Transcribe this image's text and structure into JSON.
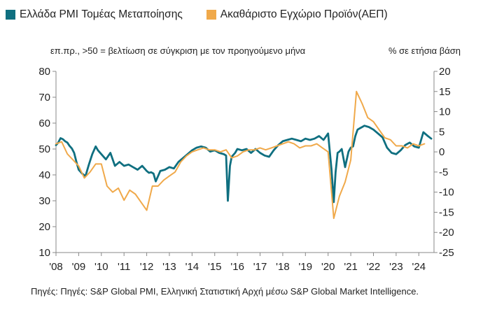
{
  "legend": {
    "pmi_label": "Ελλάδα PMI Τομέας Μεταποίησης",
    "gdp_label": "Ακαθάριστο Εγχώριο Προϊόν(ΑΕΠ)"
  },
  "notes": {
    "left": "επ.πρ., >50 = βελτίωση σε σύγκριση με τον προηγούμενο μήνα",
    "right": "% σε ετήσια βάση"
  },
  "source": "Πηγές: Πηγές: S&P Global PMI, Ελληνική Στατιστική Αρχή μέσω S&P Global Market Intelligence.",
  "colors": {
    "pmi": "#0f6f80",
    "gdp": "#f0a94a",
    "axis": "#888888"
  },
  "chart_data": {
    "type": "line",
    "title": "",
    "xlabel": "",
    "x_tick_labels": [
      "'08",
      "'09",
      "'10",
      "'11",
      "'12",
      "'13",
      "'14",
      "'15",
      "'16",
      "'17",
      "'18",
      "'19",
      "'20",
      "'21",
      "'22",
      "'23",
      "'24"
    ],
    "x_range": [
      2008.0,
      2024.67
    ],
    "y_left": {
      "label": "επ.πρ.",
      "ylim": [
        10,
        80
      ],
      "ticks": [
        10,
        20,
        30,
        40,
        50,
        60,
        70,
        80
      ]
    },
    "y_right": {
      "label": "% σε ετήσια βάση",
      "ylim": [
        -25,
        20
      ],
      "ticks": [
        -25,
        -20,
        -15,
        -10,
        -5,
        0,
        5,
        10,
        15,
        20
      ]
    },
    "series": [
      {
        "name": "Ελλάδα PMI Τομέας Μεταποίησης",
        "axis": "left",
        "x": [
          2008.0,
          2008.1,
          2008.2,
          2008.3,
          2008.4,
          2008.5,
          2008.6,
          2008.7,
          2008.8,
          2008.9,
          2009.0,
          2009.15,
          2009.3,
          2009.45,
          2009.6,
          2009.75,
          2009.85,
          2010.0,
          2010.2,
          2010.4,
          2010.6,
          2010.8,
          2011.0,
          2011.2,
          2011.4,
          2011.6,
          2011.8,
          2012.0,
          2012.1,
          2012.2,
          2012.3,
          2012.4,
          2012.6,
          2012.8,
          2013.0,
          2013.2,
          2013.4,
          2013.6,
          2013.8,
          2014.0,
          2014.2,
          2014.4,
          2014.6,
          2014.8,
          2015.0,
          2015.2,
          2015.4,
          2015.5,
          2015.58,
          2015.67,
          2015.75,
          2015.9,
          2016.0,
          2016.2,
          2016.4,
          2016.6,
          2016.8,
          2017.0,
          2017.2,
          2017.4,
          2017.6,
          2017.8,
          2018.0,
          2018.2,
          2018.4,
          2018.6,
          2018.8,
          2019.0,
          2019.2,
          2019.4,
          2019.6,
          2019.8,
          2020.0,
          2020.15,
          2020.25,
          2020.33,
          2020.42,
          2020.5,
          2020.6,
          2020.75,
          2020.9,
          2021.0,
          2021.1,
          2021.2,
          2021.3,
          2021.4,
          2021.5,
          2021.6,
          2021.8,
          2022.0,
          2022.2,
          2022.4,
          2022.6,
          2022.8,
          2023.0,
          2023.2,
          2023.4,
          2023.6,
          2023.8,
          2024.0,
          2024.2,
          2024.4,
          2024.55
        ],
        "values": [
          51.5,
          52.5,
          54.2,
          53.8,
          53.0,
          52.5,
          51.2,
          50.2,
          48.5,
          45.0,
          42.0,
          40.5,
          39.5,
          44.0,
          48.0,
          51.0,
          49.5,
          48.0,
          46.0,
          48.5,
          43.5,
          45.0,
          43.5,
          44.0,
          43.0,
          42.0,
          43.5,
          41.5,
          40.8,
          41.0,
          40.5,
          37.5,
          41.5,
          42.0,
          43.0,
          42.5,
          45.0,
          46.5,
          48.0,
          49.5,
          50.5,
          51.0,
          50.5,
          49.0,
          49.5,
          48.5,
          48.0,
          47.5,
          30.0,
          43.5,
          47.0,
          48.5,
          50.0,
          49.5,
          50.0,
          48.5,
          50.0,
          48.5,
          47.5,
          47.0,
          49.5,
          51.5,
          53.0,
          53.5,
          54.0,
          53.5,
          53.0,
          54.0,
          53.5,
          54.0,
          55.0,
          53.5,
          56.0,
          42.0,
          29.5,
          41.0,
          48.5,
          49.0,
          50.0,
          43.0,
          49.0,
          50.5,
          51.0,
          55.0,
          57.5,
          58.0,
          58.5,
          59.0,
          58.5,
          57.5,
          56.0,
          54.5,
          50.5,
          48.5,
          48.0,
          49.5,
          51.5,
          52.5,
          51.0,
          50.5,
          56.5,
          55.0,
          54.0
        ]
      },
      {
        "name": "Ακαθάριστο Εγχώριο Προϊόν(ΑΕΠ)",
        "axis": "right",
        "x": [
          2008.0,
          2008.25,
          2008.5,
          2008.75,
          2009.0,
          2009.25,
          2009.5,
          2009.75,
          2010.0,
          2010.25,
          2010.5,
          2010.75,
          2011.0,
          2011.25,
          2011.5,
          2011.75,
          2012.0,
          2012.25,
          2012.5,
          2012.75,
          2013.0,
          2013.25,
          2013.5,
          2013.75,
          2014.0,
          2014.25,
          2014.5,
          2014.75,
          2015.0,
          2015.25,
          2015.5,
          2015.75,
          2016.0,
          2016.25,
          2016.5,
          2016.75,
          2017.0,
          2017.25,
          2017.5,
          2017.75,
          2018.0,
          2018.25,
          2018.5,
          2018.75,
          2019.0,
          2019.25,
          2019.5,
          2019.75,
          2020.0,
          2020.25,
          2020.5,
          2020.75,
          2021.0,
          2021.25,
          2021.5,
          2021.75,
          2022.0,
          2022.25,
          2022.5,
          2022.75,
          2023.0,
          2023.25,
          2023.5,
          2023.75,
          2024.0,
          2024.25
        ],
        "values": [
          2.0,
          2.5,
          -0.5,
          -2.0,
          -3.5,
          -6.5,
          -5.0,
          -3.0,
          -3.0,
          -8.5,
          -10.0,
          -9.0,
          -12.0,
          -9.5,
          -10.5,
          -12.5,
          -14.5,
          -8.5,
          -8.5,
          -7.0,
          -6.0,
          -5.0,
          -2.5,
          -1.0,
          0.0,
          0.5,
          1.0,
          0.5,
          0.5,
          0.0,
          0.5,
          -1.5,
          -1.0,
          0.0,
          0.5,
          0.5,
          1.0,
          0.5,
          1.0,
          1.5,
          2.0,
          2.5,
          2.0,
          1.0,
          1.5,
          1.5,
          2.0,
          1.0,
          0.0,
          -16.5,
          -11.0,
          -7.5,
          -2.0,
          15.0,
          12.0,
          8.5,
          7.5,
          5.5,
          3.5,
          3.0,
          1.5,
          1.5,
          1.0,
          2.0,
          1.5,
          2.0
        ]
      }
    ]
  }
}
